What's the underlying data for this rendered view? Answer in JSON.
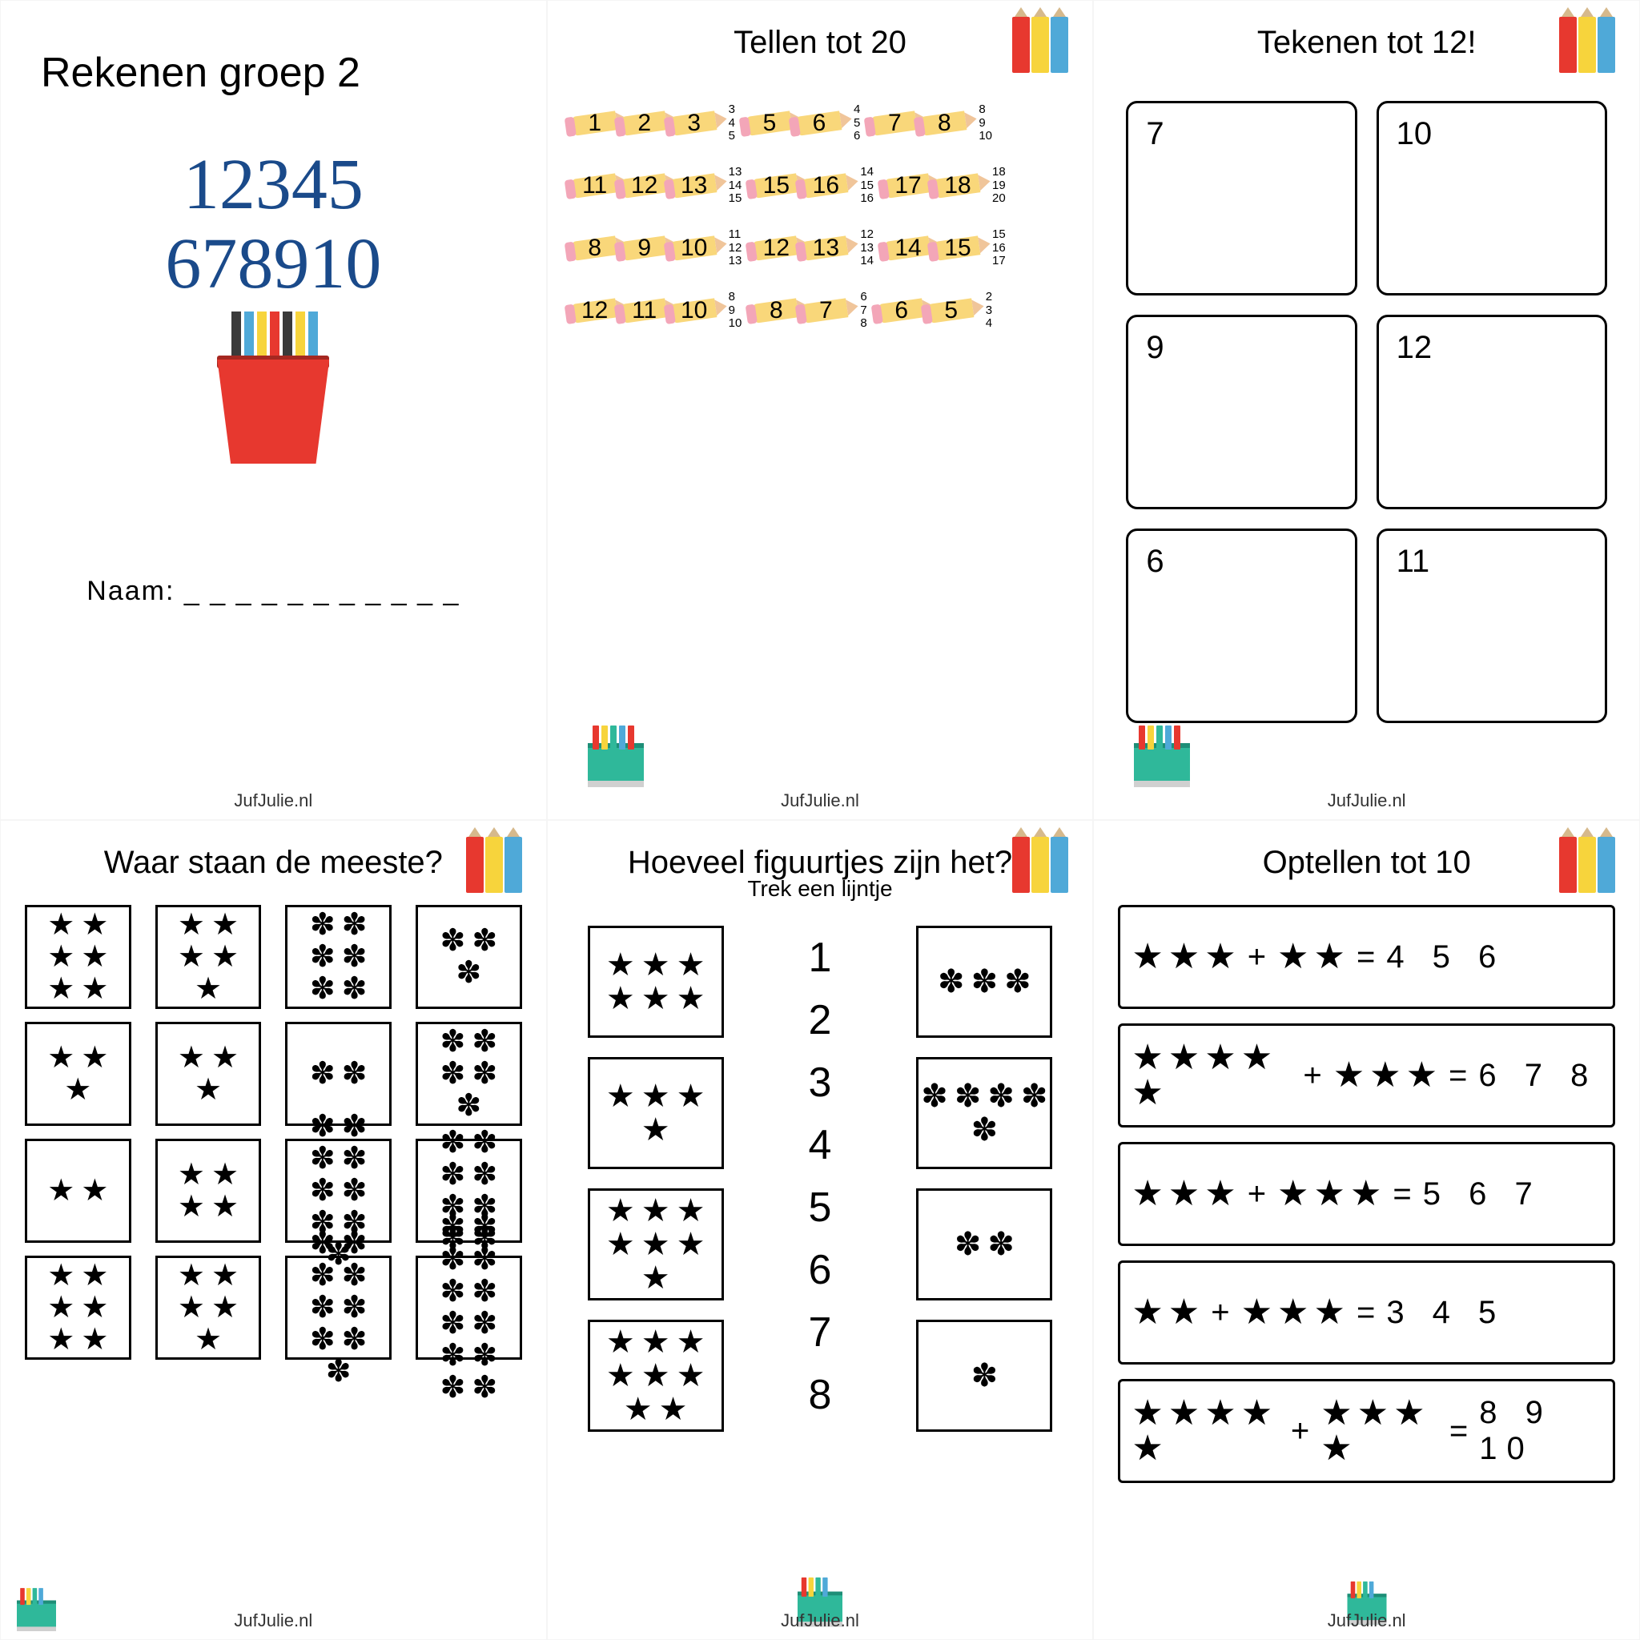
{
  "colors": {
    "red": "#e7382f",
    "yellow": "#f7d43c",
    "blue": "#4fa9d8",
    "green": "#2fb89a",
    "navy": "#1a4a8a",
    "pencil_body": "#f9d77a",
    "pencil_eraser": "#f3a6b8",
    "bg": "#ffffff"
  },
  "footer": "JufJulie.nl",
  "panel1": {
    "title": "Rekenen groep 2",
    "numbers_line1": "12345",
    "numbers_line2": "678910",
    "name_label": "Naam:",
    "name_dashes": "_ _ _ _ _ _ _ _ _ _ _"
  },
  "panel2": {
    "title": "Tellen tot 20",
    "rows": [
      {
        "cells": [
          {
            "n": "1"
          },
          {
            "n": "2"
          },
          {
            "n": "3"
          },
          {
            "stack": [
              "3",
              "4",
              "5"
            ]
          },
          {
            "n": "5"
          },
          {
            "n": "6"
          },
          {
            "stack": [
              "4",
              "5",
              "6"
            ]
          },
          {
            "n": "7"
          },
          {
            "n": "8"
          },
          {
            "stack": [
              "8",
              "9",
              "10"
            ]
          }
        ]
      },
      {
        "cells": [
          {
            "n": "11"
          },
          {
            "n": "12"
          },
          {
            "n": "13"
          },
          {
            "stack": [
              "13",
              "14",
              "15"
            ]
          },
          {
            "n": "15"
          },
          {
            "n": "16"
          },
          {
            "stack": [
              "14",
              "15",
              "16"
            ]
          },
          {
            "n": "17"
          },
          {
            "n": "18"
          },
          {
            "stack": [
              "18",
              "19",
              "20"
            ]
          }
        ]
      },
      {
        "cells": [
          {
            "n": "8"
          },
          {
            "n": "9"
          },
          {
            "n": "10"
          },
          {
            "stack": [
              "11",
              "12",
              "13"
            ]
          },
          {
            "n": "12"
          },
          {
            "n": "13"
          },
          {
            "stack": [
              "12",
              "13",
              "14"
            ]
          },
          {
            "n": "14"
          },
          {
            "n": "15"
          },
          {
            "stack": [
              "15",
              "16",
              "17"
            ]
          }
        ]
      },
      {
        "cells": [
          {
            "n": "12"
          },
          {
            "n": "11"
          },
          {
            "n": "10"
          },
          {
            "stack": [
              "8",
              "9",
              "10"
            ]
          },
          {
            "n": "8"
          },
          {
            "n": "7"
          },
          {
            "stack": [
              "6",
              "7",
              "8"
            ]
          },
          {
            "n": "6"
          },
          {
            "n": "5"
          },
          {
            "stack": [
              "2",
              "3",
              "4"
            ]
          }
        ]
      }
    ]
  },
  "panel3": {
    "title": "Tekenen tot 12!",
    "boxes": [
      "7",
      "10",
      "9",
      "12",
      "6",
      "11"
    ]
  },
  "panel4": {
    "title": "Waar staan de meeste?",
    "rows": [
      [
        {
          "glyph": "★",
          "count": 6
        },
        {
          "glyph": "★",
          "count": 5
        },
        {
          "glyph": "✽",
          "count": 6
        },
        {
          "glyph": "✽",
          "count": 3
        }
      ],
      [
        {
          "glyph": "★",
          "count": 3
        },
        {
          "glyph": "★",
          "count": 3
        },
        {
          "glyph": "✽",
          "count": 2
        },
        {
          "glyph": "✽",
          "count": 5
        }
      ],
      [
        {
          "glyph": "★",
          "count": 2
        },
        {
          "glyph": "★",
          "count": 4
        },
        {
          "glyph": "✽",
          "count": 9
        },
        {
          "glyph": "✽",
          "count": 8
        }
      ],
      [
        {
          "glyph": "★",
          "count": 6
        },
        {
          "glyph": "★",
          "count": 5
        },
        {
          "glyph": "✽",
          "count": 9
        },
        {
          "glyph": "✽",
          "count": 12
        }
      ]
    ]
  },
  "panel5": {
    "title": "Hoeveel figuurtjes zijn het?",
    "subtitle": "Trek een lijntje",
    "left": [
      {
        "glyph": "★",
        "count": 6
      },
      {
        "glyph": "★",
        "count": 4
      },
      {
        "glyph": "★",
        "count": 7
      },
      {
        "glyph": "★",
        "count": 8
      }
    ],
    "numbers": [
      "1",
      "2",
      "3",
      "4",
      "5",
      "6",
      "7",
      "8"
    ],
    "right": [
      {
        "glyph": "✽",
        "count": 3
      },
      {
        "glyph": "✽",
        "count": 5
      },
      {
        "glyph": "✽",
        "count": 2
      },
      {
        "glyph": "✽",
        "count": 1
      }
    ]
  },
  "panel6": {
    "title": "Optellen tot 10",
    "rows": [
      {
        "a": 3,
        "b": 2,
        "answers": "4 5 6"
      },
      {
        "a": 5,
        "b": 3,
        "answers": "6 7 8"
      },
      {
        "a": 3,
        "b": 3,
        "answers": "5 6 7"
      },
      {
        "a": 2,
        "b": 3,
        "answers": "3 4 5"
      },
      {
        "a": 5,
        "b": 4,
        "answers": "8 9 10"
      }
    ],
    "plus": "+",
    "eq": "="
  }
}
